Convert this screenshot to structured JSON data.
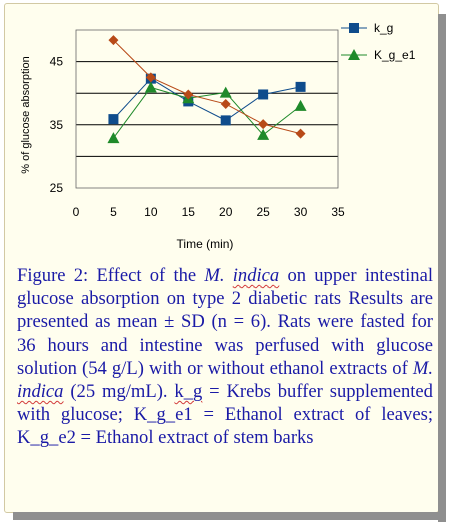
{
  "colors": {
    "card_background": "#fffeee",
    "caption_text": "#1a1aa6",
    "series_k_g": "#0f4c8c",
    "series_k_g_e1": "#1f8a2a",
    "series_k_g_e2": "#b84a18"
  },
  "chart_data": {
    "type": "line",
    "title": "",
    "xlabel": "Time (min)",
    "ylabel": "% of glucose absorption",
    "xlim": [
      0,
      35
    ],
    "ylim": [
      25,
      50
    ],
    "x_ticks": [
      "0",
      "5",
      "10",
      "15",
      "20",
      "25",
      "30",
      "35"
    ],
    "y_ticks": [
      "25",
      "35",
      "45"
    ],
    "gridlines_at": [
      30,
      35,
      40,
      45
    ],
    "legend_position": "top-right",
    "series": [
      {
        "name": "k_g",
        "marker": "square",
        "color": "#0f4c8c",
        "x": [
          5,
          10,
          15,
          20,
          25,
          30
        ],
        "y": [
          35.9,
          42.3,
          38.7,
          35.7,
          39.8,
          41.0
        ]
      },
      {
        "name": "K_g_e1",
        "marker": "triangle",
        "color": "#1f8a2a",
        "x": [
          5,
          10,
          15,
          20,
          25,
          30
        ],
        "y": [
          32.9,
          40.9,
          39.2,
          40.1,
          33.4,
          38.0
        ]
      },
      {
        "name": "",
        "marker": "diamond",
        "color": "#b84a18",
        "x": [
          5,
          10,
          15,
          20,
          25,
          30
        ],
        "y": [
          48.4,
          42.5,
          39.8,
          38.3,
          35.1,
          33.6
        ]
      }
    ]
  },
  "caption": {
    "t1": "Figure 2: Effect of the ",
    "species_1a": "M.",
    "species_1b": "indica",
    "t2": " on upper intestinal glucose absorption on type 2 diabetic rats Results are presented as mean ± SD (n = 6). Rats were fasted for 36 hours and intestine was perfused with glucose solution (54 g/L) with or without ethanol extracts of ",
    "species_2a": "M.",
    "species_2b": "indica",
    "t3": " (25 mg/mL). ",
    "kg_label": "k_g",
    "t4": " = Krebs buffer supplemented with glucose;       K_g_e1 = Ethanol extract of leaves; K_g_e2 = Ethanol extract of stem barks"
  }
}
